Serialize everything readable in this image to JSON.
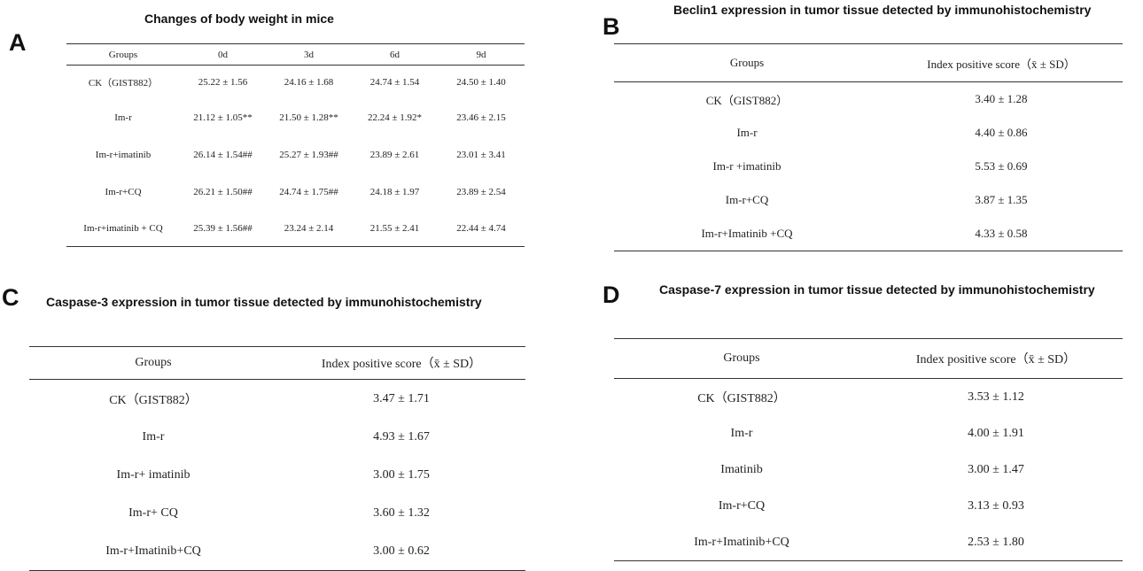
{
  "panels": [
    {
      "letter": "A",
      "title": "Changes of body weight in mice",
      "headers": [
        "Groups",
        "0d",
        "3d",
        "6d",
        "9d"
      ],
      "rows": [
        [
          "CK（GIST882）",
          "25.22 ± 1.56",
          "24.16 ± 1.68",
          "24.74 ± 1.54",
          "24.50 ± 1.40"
        ],
        [
          "Im-r",
          "21.12 ± 1.05**",
          "21.50 ± 1.28**",
          "22.24 ± 1.92*",
          "23.46 ± 2.15"
        ],
        [
          "Im-r+imatinib",
          "26.14 ± 1.54##",
          "25.27 ± 1.93##",
          "23.89 ± 2.61",
          "23.01 ± 3.41"
        ],
        [
          "Im-r+CQ",
          "26.21 ± 1.50##",
          "24.74 ± 1.75##",
          "24.18 ± 1.97",
          "23.89 ± 2.54"
        ],
        [
          "Im-r+imatinib + CQ",
          "25.39 ± 1.56##",
          "23.24 ± 2.14",
          "21.55 ± 2.41",
          "22.44 ± 4.74"
        ]
      ]
    },
    {
      "letter": "B",
      "title": "Beclin1 expression in tumor tissue detected by immunohistochemistry",
      "headers": [
        "Groups",
        "Index positive score（x̄ ± SD）"
      ],
      "rows": [
        [
          "CK（GIST882）",
          "3.40 ± 1.28"
        ],
        [
          "Im-r",
          "4.40 ± 0.86"
        ],
        [
          "Im-r +imatinib",
          "5.53 ± 0.69"
        ],
        [
          "Im-r+CQ",
          "3.87 ± 1.35"
        ],
        [
          "Im-r+Imatinib +CQ",
          "4.33 ± 0.58"
        ]
      ]
    },
    {
      "letter": "C",
      "title": "Caspase-3 expression in tumor tissue detected by immunohistochemistry",
      "headers": [
        "Groups",
        "Index positive score（x̄ ± SD）"
      ],
      "rows": [
        [
          "CK（GIST882）",
          "3.47 ± 1.71"
        ],
        [
          "Im-r",
          "4.93 ± 1.67"
        ],
        [
          "Im-r+ imatinib",
          "3.00 ± 1.75"
        ],
        [
          "Im-r+ CQ",
          "3.60 ± 1.32"
        ],
        [
          "Im-r+Imatinib+CQ",
          "3.00 ± 0.62"
        ]
      ]
    },
    {
      "letter": "D",
      "title": "Caspase-7 expression in tumor tissue detected by immunohistochemistry",
      "headers": [
        "Groups",
        "Index positive score（x̄ ± SD）"
      ],
      "rows": [
        [
          "CK（GIST882）",
          "3.53 ± 1.12"
        ],
        [
          "Im-r",
          "4.00 ± 1.91"
        ],
        [
          "Imatinib",
          "3.00 ± 1.47"
        ],
        [
          "Im-r+CQ",
          "3.13 ± 0.93"
        ],
        [
          "Im-r+Imatinib+CQ",
          "2.53 ± 1.80"
        ]
      ]
    }
  ]
}
